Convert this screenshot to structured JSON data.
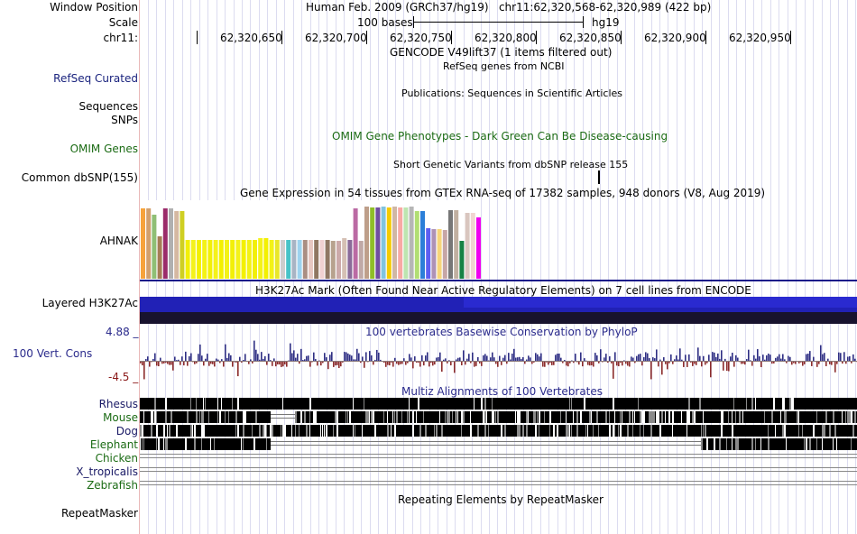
{
  "colors": {
    "refseq": "#1a237e",
    "green": "#1b6b14",
    "blue_text": "#2b2b8c",
    "red_text": "#8b1a1a",
    "cons_pos": "#2e2e84",
    "cons_neg": "#8b2c2c",
    "h3k_dark": "#17178a",
    "h3k_mid": "#2323b9",
    "h3k_black": "#18132e"
  },
  "header": {
    "window_position_label": "Window Position",
    "window_position_value": "Human Feb. 2009 (GRCh37/hg19)   chr11:62,320,568-62,320,989 (422 bp)",
    "scale_label": "Scale",
    "scale_bases": "100 bases",
    "scale_assembly": "hg19",
    "chr_label": "chr11:",
    "positions": [
      "62,320,650",
      "62,320,700",
      "62,320,750",
      "62,320,800",
      "62,320,850",
      "62,320,900",
      "62,320,950"
    ]
  },
  "tracks": {
    "gencode": {
      "title": "GENCODE V49lift37 (1 items filtered out)"
    },
    "refseq": {
      "label": "RefSeq Curated",
      "title": "RefSeq genes from NCBI"
    },
    "publications": {
      "title": "Publications: Sequences in Scientific Articles",
      "label_line1": "Sequences",
      "label_line2": "SNPs"
    },
    "omim": {
      "label": "OMIM Genes",
      "title": "OMIM Gene Phenotypes - Dark Green Can Be Disease-causing"
    },
    "dbsnp": {
      "label": "Common dbSNP(155)",
      "title": "Short Genetic Variants from dbSNP release 155"
    },
    "gtex": {
      "title": "Gene Expression in 54 tissues from GTEx RNA-seq of 17382 samples, 948 donors (V8, Aug 2019)",
      "gene": "AHNAK",
      "bar_values": [
        78,
        78,
        71,
        47,
        78,
        78,
        75,
        75,
        43,
        43,
        43,
        43,
        43,
        43,
        43,
        43,
        43,
        43,
        43,
        43,
        43,
        45,
        45,
        43,
        43,
        43,
        43,
        43,
        43,
        43,
        43,
        43,
        43,
        43,
        42,
        42,
        45,
        43,
        78,
        42,
        80,
        79,
        79,
        80,
        79,
        80,
        79,
        79,
        80,
        75,
        75,
        56,
        55,
        55,
        54,
        76,
        76,
        42,
        73,
        73,
        68,
        56,
        56,
        65,
        88,
        57,
        54,
        40,
        42,
        75,
        75,
        73,
        56,
        56,
        62,
        60,
        55,
        48,
        62,
        62,
        79,
        79,
        35
      ],
      "bar_colors": [
        "#f7a33a",
        "#d2a06c",
        "#8fbf75",
        "#a67d55",
        "#9b2c6a",
        "#b0b0b0",
        "#d5b8a1",
        "#cfcf23",
        "#f2ef08",
        "#f4f21a",
        "#f3f000",
        "#f3f216",
        "#f2ef08",
        "#f4f21a",
        "#f3f000",
        "#f3f216",
        "#f2ef08",
        "#f4f21a",
        "#f3f000",
        "#f3f216",
        "#f2ef08",
        "#f4f21a",
        "#f3f000",
        "#f3f216",
        "#e9e728",
        "#cdcdcd",
        "#47c3c8",
        "#a8b4c4",
        "#9dd3ef",
        "#aa8e83",
        "#e7c8c2",
        "#8f7762",
        "#f0d1d1",
        "#8f7763",
        "#b7a28e",
        "#ccaaaa",
        "#d5c0b4",
        "#8a6b99",
        "#bb6aa4",
        "#c0a9a6",
        "#be9f8a",
        "#8fbe27",
        "#704ea0",
        "#81c4df",
        "#f5cb00",
        "#d0b7a5",
        "#f7a9a4",
        "#bde5b0",
        "#b6b6b6",
        "#b1de73",
        "#2c7fd8",
        "#5d5ff2",
        "#ae92b6",
        "#f7d57a",
        "#c6a6a6",
        "#777777",
        "#c1b0a1",
        "#168244",
        "#d9c6bf",
        "#f0d6d0",
        "#f000f0"
      ]
    },
    "h3k27ac": {
      "label": "Layered H3K27Ac",
      "title": "H3K27Ac Mark (Often Found Near Active Regulatory Elements) on 7 cell lines from ENCODE"
    },
    "conservation": {
      "label": "100 Vert. Cons",
      "max": "4.88 _",
      "min": "-4.5 _",
      "title": "100 vertebrates Basewise Conservation by PhyloP"
    },
    "multiz": {
      "title": "Multiz Alignments of 100 Vertebrates",
      "species": [
        {
          "name": "Rhesus",
          "color": "#1a1a66"
        },
        {
          "name": "Mouse",
          "color": "#1b6b14"
        },
        {
          "name": "Dog",
          "color": "#1a1a66"
        },
        {
          "name": "Elephant",
          "color": "#1b6b14"
        },
        {
          "name": "Chicken",
          "color": "#1b6b14"
        },
        {
          "name": "X_tropicalis",
          "color": "#1a1a66"
        },
        {
          "name": "Zebrafish",
          "color": "#1b6b14"
        }
      ]
    },
    "repeatmasker": {
      "label": "RepeatMasker",
      "title": "Repeating Elements by RepeatMasker"
    }
  }
}
